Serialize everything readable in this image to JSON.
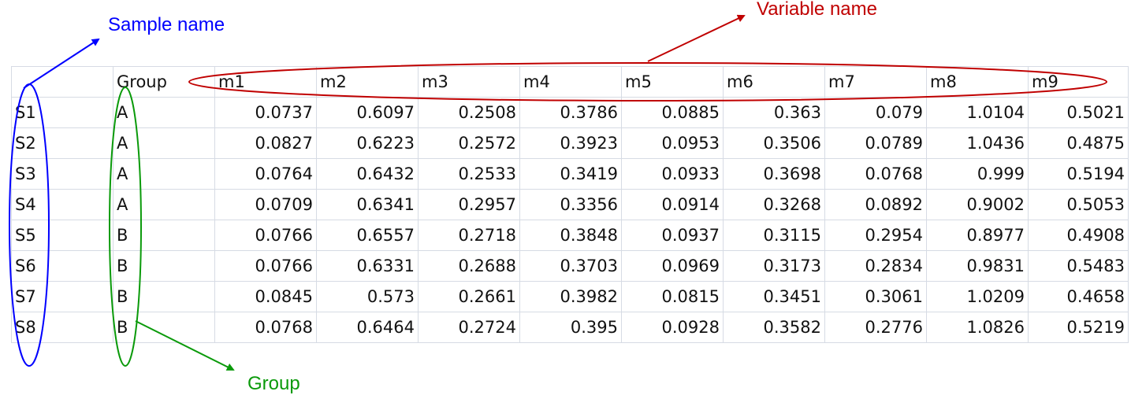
{
  "annotations": {
    "sample_name": {
      "label": "Sample name",
      "color": "#0000ff"
    },
    "variable_name": {
      "label": "Variable name",
      "color": "#c00000"
    },
    "group": {
      "label": "Group",
      "color": "#0a9a0a"
    }
  },
  "table": {
    "header": [
      "",
      "Group",
      "m1",
      "m2",
      "m3",
      "m4",
      "m5",
      "m6",
      "m7",
      "m8",
      "m9"
    ],
    "rows": [
      [
        "S1",
        "A",
        "0.0737",
        "0.6097",
        "0.2508",
        "0.3786",
        "0.0885",
        "0.363",
        "0.079",
        "1.0104",
        "0.5021"
      ],
      [
        "S2",
        "A",
        "0.0827",
        "0.6223",
        "0.2572",
        "0.3923",
        "0.0953",
        "0.3506",
        "0.0789",
        "1.0436",
        "0.4875"
      ],
      [
        "S3",
        "A",
        "0.0764",
        "0.6432",
        "0.2533",
        "0.3419",
        "0.0933",
        "0.3698",
        "0.0768",
        "0.999",
        "0.5194"
      ],
      [
        "S4",
        "A",
        "0.0709",
        "0.6341",
        "0.2957",
        "0.3356",
        "0.0914",
        "0.3268",
        "0.0892",
        "0.9002",
        "0.5053"
      ],
      [
        "S5",
        "B",
        "0.0766",
        "0.6557",
        "0.2718",
        "0.3848",
        "0.0937",
        "0.3115",
        "0.2954",
        "0.8977",
        "0.4908"
      ],
      [
        "S6",
        "B",
        "0.0766",
        "0.6331",
        "0.2688",
        "0.3703",
        "0.0969",
        "0.3173",
        "0.2834",
        "0.9831",
        "0.5483"
      ],
      [
        "S7",
        "B",
        "0.0845",
        "0.573",
        "0.2661",
        "0.3982",
        "0.0815",
        "0.3451",
        "0.3061",
        "1.0209",
        "0.4658"
      ],
      [
        "S8",
        "B",
        "0.0768",
        "0.6464",
        "0.2724",
        "0.395",
        "0.0928",
        "0.3582",
        "0.2776",
        "1.0826",
        "0.5219"
      ]
    ]
  }
}
